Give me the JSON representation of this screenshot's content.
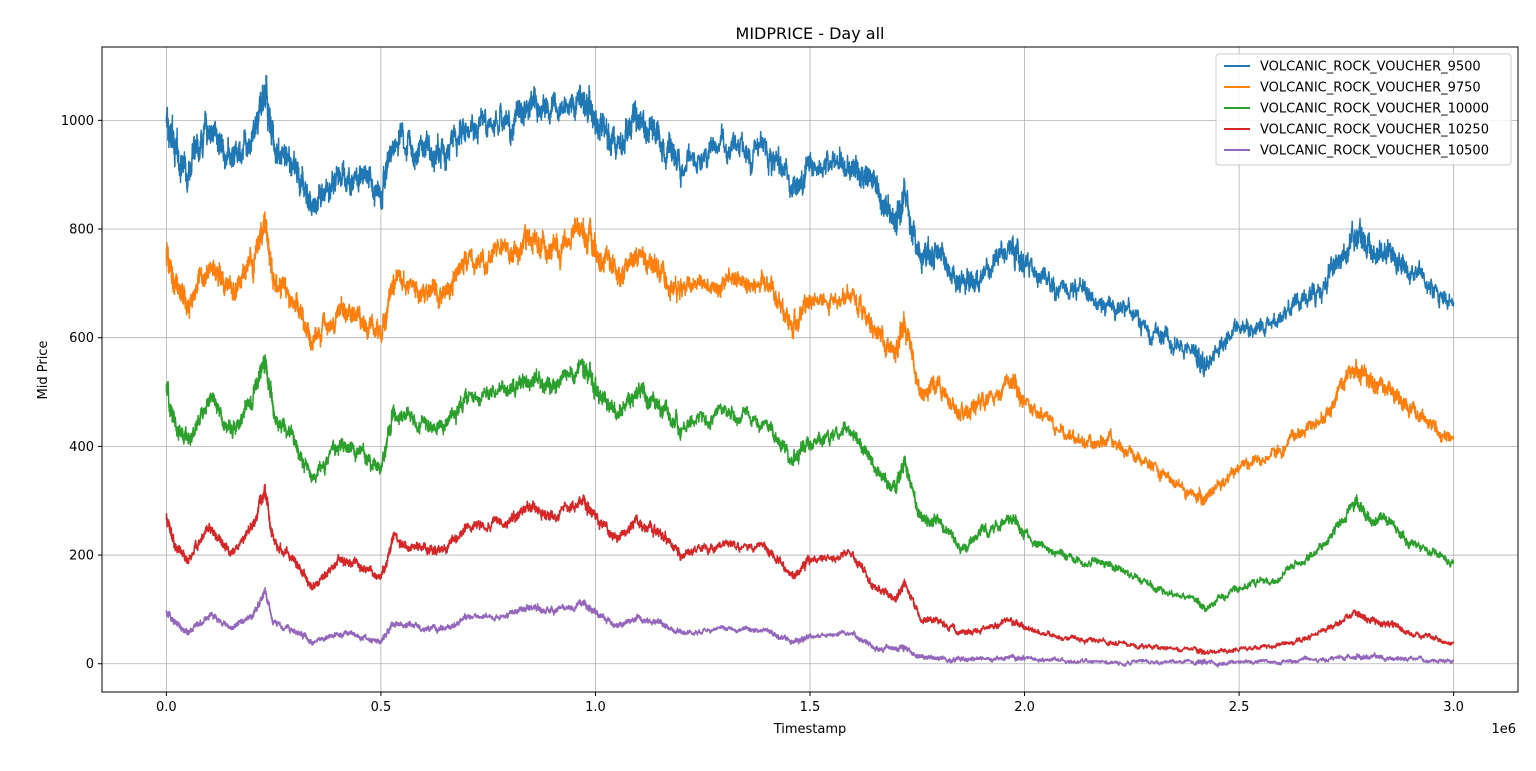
{
  "chart_data": {
    "type": "line",
    "title": "MIDPRICE - Day all",
    "xlabel": "Timestamp",
    "ylabel": "Mid Price",
    "x_offset_label": "1e6",
    "xlim": [
      -0.15,
      3.15
    ],
    "ylim": [
      -52,
      1135
    ],
    "x_ticks": [
      0.0,
      0.5,
      1.0,
      1.5,
      2.0,
      2.5,
      3.0
    ],
    "x_tick_labels": [
      "0.0",
      "0.5",
      "1.0",
      "1.5",
      "2.0",
      "2.5",
      "3.0"
    ],
    "y_ticks": [
      0,
      200,
      400,
      600,
      800,
      1000
    ],
    "y_tick_labels": [
      "0",
      "200",
      "400",
      "600",
      "800",
      "1000"
    ],
    "grid": true,
    "legend_position": "top-right",
    "x": [
      0.0,
      0.02,
      0.05,
      0.1,
      0.15,
      0.2,
      0.23,
      0.25,
      0.3,
      0.34,
      0.4,
      0.45,
      0.5,
      0.53,
      0.6,
      0.65,
      0.7,
      0.8,
      0.85,
      0.9,
      0.97,
      1.0,
      1.05,
      1.1,
      1.15,
      1.2,
      1.3,
      1.4,
      1.46,
      1.5,
      1.6,
      1.65,
      1.7,
      1.72,
      1.76,
      1.8,
      1.85,
      1.9,
      1.97,
      2.0,
      2.1,
      2.2,
      2.3,
      2.4,
      2.42,
      2.5,
      2.6,
      2.7,
      2.77,
      2.8,
      2.85,
      2.9,
      3.0
    ],
    "series": [
      {
        "name": "VOLCANIC_ROCK_VOUCHER_9500",
        "color": "#1f77b4",
        "values": [
          1000,
          940,
          910,
          990,
          930,
          980,
          1060,
          960,
          910,
          840,
          900,
          890,
          870,
          960,
          940,
          940,
          990,
          1000,
          1030,
          1010,
          1045,
          1010,
          960,
          1000,
          970,
          930,
          960,
          940,
          870,
          910,
          930,
          870,
          820,
          870,
          740,
          750,
          690,
          710,
          760,
          740,
          680,
          670,
          610,
          570,
          540,
          620,
          640,
          700,
          800,
          770,
          760,
          720,
          665
        ]
      },
      {
        "name": "VOLCANIC_ROCK_VOUCHER_9750",
        "color": "#ff7f0e",
        "values": [
          755,
          690,
          660,
          740,
          680,
          730,
          810,
          710,
          660,
          590,
          650,
          640,
          610,
          710,
          690,
          690,
          740,
          750,
          780,
          760,
          795,
          760,
          710,
          750,
          720,
          680,
          710,
          690,
          620,
          660,
          680,
          610,
          570,
          620,
          500,
          510,
          450,
          480,
          520,
          480,
          420,
          410,
          360,
          310,
          300,
          360,
          390,
          460,
          550,
          520,
          510,
          470,
          415
        ]
      },
      {
        "name": "VOLCANIC_ROCK_VOUCHER_10000",
        "color": "#2ca02c",
        "values": [
          505,
          440,
          410,
          490,
          430,
          480,
          560,
          460,
          410,
          340,
          400,
          390,
          360,
          460,
          440,
          440,
          490,
          500,
          530,
          510,
          545,
          510,
          460,
          500,
          470,
          430,
          460,
          440,
          370,
          410,
          430,
          360,
          320,
          370,
          260,
          260,
          210,
          240,
          270,
          240,
          190,
          180,
          140,
          120,
          100,
          140,
          160,
          220,
          300,
          270,
          260,
          220,
          185
        ]
      },
      {
        "name": "VOLCANIC_ROCK_VOUCHER_10250",
        "color": "#d62728",
        "values": [
          265,
          215,
          190,
          250,
          200,
          250,
          320,
          220,
          190,
          140,
          190,
          180,
          155,
          230,
          210,
          210,
          250,
          260,
          290,
          270,
          300,
          270,
          230,
          260,
          240,
          200,
          220,
          210,
          160,
          190,
          200,
          140,
          120,
          150,
          80,
          80,
          55,
          65,
          80,
          65,
          45,
          40,
          30,
          25,
          20,
          25,
          35,
          60,
          95,
          80,
          75,
          55,
          38
        ]
      },
      {
        "name": "VOLCANIC_ROCK_VOUCHER_10500",
        "color": "#9467bd",
        "values": [
          95,
          75,
          60,
          90,
          65,
          90,
          130,
          75,
          60,
          40,
          55,
          50,
          40,
          75,
          65,
          65,
          85,
          90,
          105,
          95,
          110,
          95,
          70,
          85,
          75,
          55,
          65,
          60,
          40,
          50,
          55,
          30,
          25,
          30,
          12,
          10,
          7,
          8,
          12,
          8,
          5,
          4,
          3,
          2,
          2,
          3,
          4,
          8,
          14,
          12,
          11,
          8,
          5
        ]
      }
    ]
  }
}
